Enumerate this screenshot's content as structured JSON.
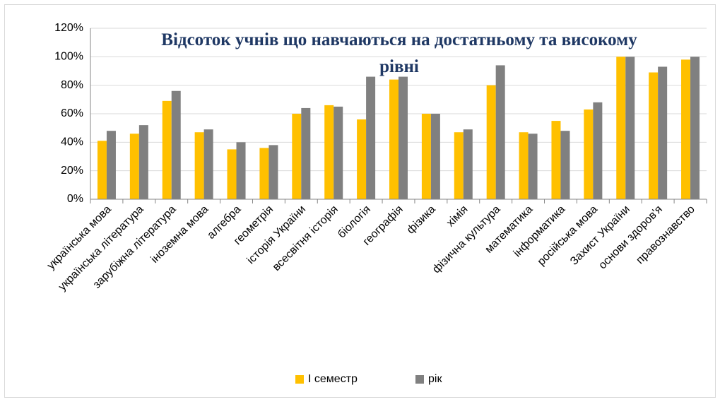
{
  "chart_data": {
    "type": "bar",
    "title": "Відсоток учнів що навчаються на достатньому та високому рівні",
    "categories": [
      "українська мова",
      "українська література",
      "зарубіжна література",
      "іноземна мова",
      "алгебра",
      "геометрія",
      "історія України",
      "всесвітня історія",
      "біологія",
      "географія",
      "фізика",
      "хімія",
      "фізична культура",
      "математика",
      "інформатика",
      "російська мова",
      "Захист України",
      "основи здоров'я",
      "правознавство"
    ],
    "series": [
      {
        "name": "І семестр",
        "color": "#FFC000",
        "values": [
          41,
          46,
          69,
          47,
          35,
          36,
          60,
          66,
          56,
          84,
          60,
          47,
          80,
          47,
          55,
          63,
          100,
          89,
          98
        ]
      },
      {
        "name": "рік",
        "color": "#808080",
        "values": [
          48,
          52,
          76,
          49,
          40,
          38,
          64,
          65,
          86,
          86,
          60,
          49,
          94,
          46,
          48,
          68,
          100,
          93,
          100
        ]
      }
    ],
    "ylim": [
      0,
      120
    ],
    "yticks": [
      {
        "value": 0,
        "label": "0%"
      },
      {
        "value": 20,
        "label": "20%"
      },
      {
        "value": 40,
        "label": "40%"
      },
      {
        "value": 60,
        "label": "60%"
      },
      {
        "value": 80,
        "label": "80%"
      },
      {
        "value": 100,
        "label": "100%"
      },
      {
        "value": 120,
        "label": "120%"
      }
    ],
    "grid": true,
    "legend": "bottom"
  }
}
